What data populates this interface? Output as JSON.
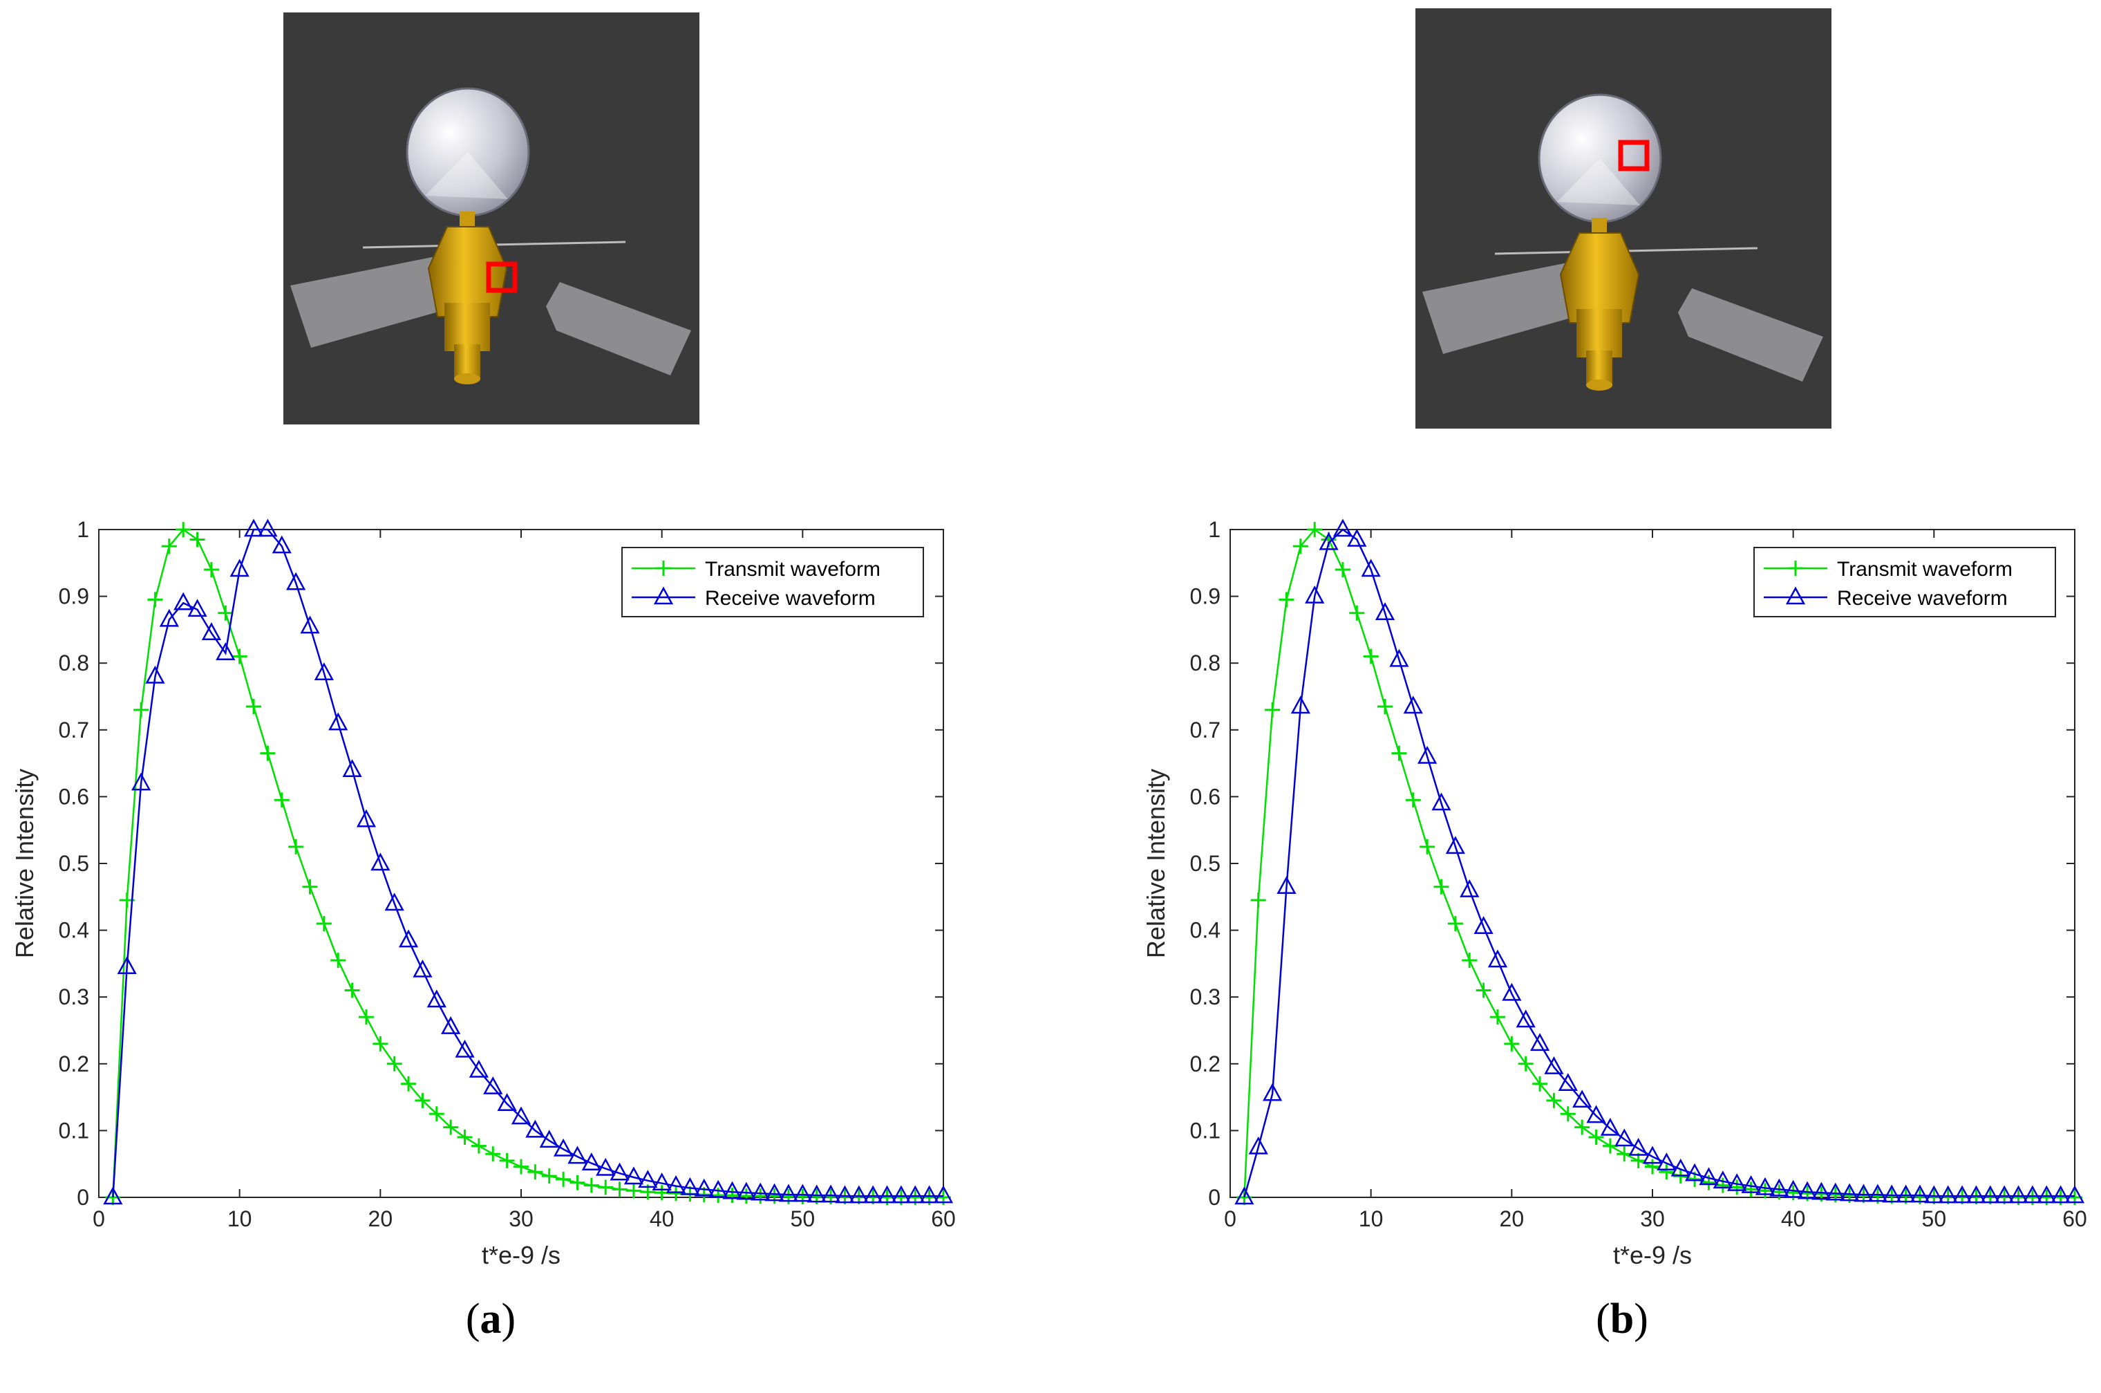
{
  "colors": {
    "transmit": "#00e000",
    "receive": "#0000d9",
    "highlight": "#ff0000",
    "scene_background": "#3a3a3a",
    "axis": "#262626"
  },
  "panels": [
    {
      "label_open": "(",
      "label_letter": "a",
      "label_close": ")",
      "highlight_target": "lower body (engine nozzle)"
    },
    {
      "label_open": "(",
      "label_letter": "b",
      "label_close": ")",
      "highlight_target": "antenna dish"
    }
  ],
  "chart_data": [
    {
      "type": "line",
      "xlabel": "t*e-9 /s",
      "ylabel": "Relative Intensity",
      "xlim": [
        0,
        60
      ],
      "ylim": [
        0,
        1
      ],
      "xticks": [
        "0",
        "10",
        "20",
        "30",
        "40",
        "50",
        "60"
      ],
      "yticks": [
        "0",
        "0.1",
        "0.2",
        "0.3",
        "0.4",
        "0.5",
        "0.6",
        "0.7",
        "0.8",
        "0.9",
        "1"
      ],
      "grid": false,
      "legend_position": "top-right",
      "x": [
        1,
        2,
        3,
        4,
        5,
        6,
        7,
        8,
        9,
        10,
        11,
        12,
        13,
        14,
        15,
        16,
        17,
        18,
        19,
        20,
        21,
        22,
        23,
        24,
        25,
        26,
        27,
        28,
        29,
        30,
        31,
        32,
        33,
        34,
        35,
        36,
        37,
        38,
        39,
        40,
        41,
        42,
        43,
        44,
        45,
        46,
        47,
        48,
        49,
        50,
        51,
        52,
        53,
        54,
        55,
        56,
        57,
        58,
        59,
        60
      ],
      "series": [
        {
          "name": "Transmit waveform",
          "marker": "+",
          "values": [
            0,
            0.445,
            0.73,
            0.895,
            0.975,
            1.0,
            0.985,
            0.94,
            0.875,
            0.81,
            0.735,
            0.665,
            0.595,
            0.525,
            0.465,
            0.41,
            0.355,
            0.31,
            0.27,
            0.23,
            0.2,
            0.17,
            0.145,
            0.125,
            0.105,
            0.09,
            0.077,
            0.065,
            0.055,
            0.046,
            0.038,
            0.032,
            0.027,
            0.022,
            0.018,
            0.015,
            0.012,
            0.01,
            0.008,
            0.007,
            0.006,
            0.005,
            0.004,
            0.003,
            0.003,
            0.002,
            0.002,
            0.002,
            0.001,
            0.001,
            0.001,
            0.001,
            0.001,
            0.001,
            0.001,
            0,
            0,
            0,
            0,
            0
          ]
        },
        {
          "name": "Receive waveform",
          "marker": "triangle",
          "values": [
            0,
            0.345,
            0.62,
            0.78,
            0.865,
            0.89,
            0.88,
            0.845,
            0.815,
            0.94,
            1.0,
            1.0,
            0.975,
            0.92,
            0.855,
            0.785,
            0.71,
            0.64,
            0.565,
            0.5,
            0.44,
            0.385,
            0.34,
            0.295,
            0.255,
            0.22,
            0.19,
            0.165,
            0.14,
            0.12,
            0.1,
            0.085,
            0.072,
            0.061,
            0.051,
            0.043,
            0.036,
            0.03,
            0.025,
            0.021,
            0.017,
            0.014,
            0.012,
            0.01,
            0.008,
            0.007,
            0.006,
            0.005,
            0.004,
            0.004,
            0.003,
            0.003,
            0.002,
            0.002,
            0.002,
            0.002,
            0.002,
            0.002,
            0.002,
            0.002
          ]
        }
      ]
    },
    {
      "type": "line",
      "xlabel": "t*e-9 /s",
      "ylabel": "Relative Intensity",
      "xlim": [
        0,
        60
      ],
      "ylim": [
        0,
        1
      ],
      "xticks": [
        "0",
        "10",
        "20",
        "30",
        "40",
        "50",
        "60"
      ],
      "yticks": [
        "0",
        "0.1",
        "0.2",
        "0.3",
        "0.4",
        "0.5",
        "0.6",
        "0.7",
        "0.8",
        "0.9",
        "1"
      ],
      "grid": false,
      "legend_position": "top-right",
      "x": [
        1,
        2,
        3,
        4,
        5,
        6,
        7,
        8,
        9,
        10,
        11,
        12,
        13,
        14,
        15,
        16,
        17,
        18,
        19,
        20,
        21,
        22,
        23,
        24,
        25,
        26,
        27,
        28,
        29,
        30,
        31,
        32,
        33,
        34,
        35,
        36,
        37,
        38,
        39,
        40,
        41,
        42,
        43,
        44,
        45,
        46,
        47,
        48,
        49,
        50,
        51,
        52,
        53,
        54,
        55,
        56,
        57,
        58,
        59,
        60
      ],
      "series": [
        {
          "name": "Transmit waveform",
          "marker": "+",
          "values": [
            0,
            0.445,
            0.73,
            0.895,
            0.975,
            1.0,
            0.985,
            0.94,
            0.875,
            0.81,
            0.735,
            0.665,
            0.595,
            0.525,
            0.465,
            0.41,
            0.355,
            0.31,
            0.27,
            0.23,
            0.2,
            0.17,
            0.145,
            0.125,
            0.105,
            0.09,
            0.077,
            0.065,
            0.055,
            0.046,
            0.038,
            0.032,
            0.027,
            0.022,
            0.018,
            0.015,
            0.012,
            0.01,
            0.008,
            0.007,
            0.006,
            0.005,
            0.004,
            0.003,
            0.003,
            0.002,
            0.002,
            0.002,
            0.001,
            0.001,
            0.001,
            0.001,
            0.001,
            0.001,
            0.001,
            0,
            0,
            0,
            0,
            0
          ]
        },
        {
          "name": "Receive waveform",
          "marker": "triangle",
          "values": [
            0,
            0.075,
            0.155,
            0.465,
            0.735,
            0.9,
            0.98,
            1.0,
            0.985,
            0.94,
            0.875,
            0.805,
            0.735,
            0.66,
            0.59,
            0.525,
            0.46,
            0.405,
            0.355,
            0.305,
            0.265,
            0.23,
            0.195,
            0.17,
            0.145,
            0.122,
            0.103,
            0.087,
            0.073,
            0.061,
            0.051,
            0.042,
            0.035,
            0.029,
            0.024,
            0.02,
            0.017,
            0.014,
            0.012,
            0.01,
            0.008,
            0.007,
            0.006,
            0.005,
            0.004,
            0.004,
            0.003,
            0.003,
            0.003,
            0.002,
            0.002,
            0.002,
            0.002,
            0.002,
            0.002,
            0.002,
            0.002,
            0.002,
            0.002,
            0.002
          ]
        }
      ]
    }
  ]
}
